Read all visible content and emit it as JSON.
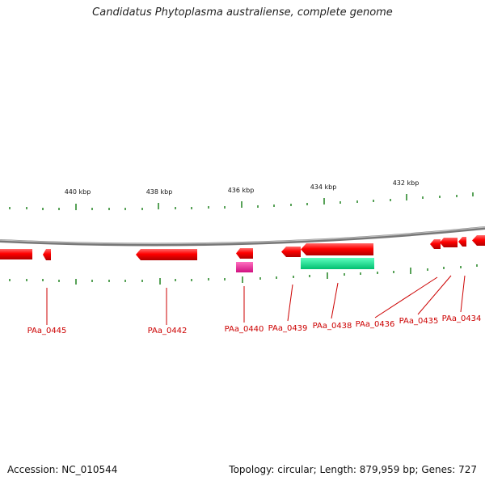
{
  "title": "Candidatus Phytoplasma australiense, complete genome",
  "footer": {
    "accession": "Accession: NC_010544",
    "topology": "Topology: circular; Length: 879,959 bp; Genes: 727"
  },
  "colors": {
    "backbone": "#8a8a8a",
    "tick": "#2e8b2e",
    "gene_forward_or_reverse": "#ff0000",
    "label": "#cc0000",
    "pink_feature": "#ff1493",
    "teal_feature": "#00e28a"
  },
  "scale_labels": [
    "440 kbp",
    "438 kbp",
    "436 kbp",
    "434 kbp",
    "432 kbp"
  ],
  "gene_labels": [
    "PAa_0445",
    "PAa_0442",
    "PAa_0440",
    "PAa_0439",
    "PAa_0438",
    "PAa_0436",
    "PAa_0435",
    "PAa_0434"
  ]
}
